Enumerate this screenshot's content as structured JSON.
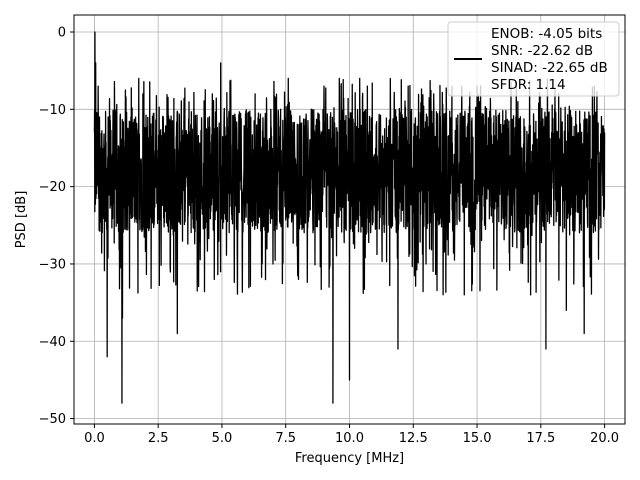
{
  "chart_data": {
    "type": "line",
    "title": "",
    "xlabel": "Frequency [MHz]",
    "ylabel": "PSD [dB]",
    "xlim": [
      -0.8,
      20.8
    ],
    "ylim": [
      -50.7,
      2.2
    ],
    "grid": true,
    "x_ticks": [
      0.0,
      2.5,
      5.0,
      7.5,
      10.0,
      12.5,
      15.0,
      17.5,
      20.0
    ],
    "x_tick_labels": [
      "0.0",
      "2.5",
      "5.0",
      "7.5",
      "10.0",
      "12.5",
      "15.0",
      "17.5",
      "20.0"
    ],
    "y_ticks": [
      0,
      -10,
      -20,
      -30,
      -40,
      -50
    ],
    "y_tick_labels": [
      "0",
      "−10",
      "−20",
      "−30",
      "−40",
      "−50"
    ],
    "legend": {
      "placement": "top-right",
      "lines": [
        "ENOB: -4.05 bits",
        "SNR: -22.62 dB",
        "SINAD: -22.65 dB",
        "SFDR: 1.14"
      ]
    },
    "series": [
      {
        "color": "#000000",
        "x_range": [
          0.0,
          20.0
        ],
        "noise_floor_range": [
          -26,
          -10
        ],
        "x": [
          0.0,
          0.02,
          0.05,
          0.1,
          0.15,
          0.2,
          0.4,
          0.5,
          0.6,
          1.08,
          1.1,
          1.2,
          1.9,
          2.2,
          2.7,
          3.25,
          4.7,
          4.95,
          5.6,
          6.3,
          7.0,
          7.3,
          7.6,
          8.0,
          8.5,
          9.0,
          9.2,
          9.35,
          9.6,
          10.0,
          10.4,
          10.7,
          11.2,
          11.9,
          12.3,
          13.0,
          13.3,
          13.7,
          14.5,
          15.0,
          15.8,
          16.3,
          16.6,
          17.1,
          17.3,
          17.7,
          18.2,
          18.5,
          18.9,
          19.2,
          19.6,
          20.0
        ],
        "y": [
          -13,
          0,
          -4,
          -17,
          -9,
          -11,
          -15,
          -42,
          -20,
          -48,
          -37,
          -14,
          -8,
          -24,
          -11,
          -39,
          -32,
          -4,
          -29,
          -8,
          -30,
          -10,
          -6,
          -32,
          -10,
          -7,
          -33,
          -48,
          -6,
          -45,
          -6,
          -7,
          -24,
          -41,
          -7,
          -30,
          -8,
          -20,
          -34,
          -7,
          -22,
          -16,
          -9,
          -34,
          -18,
          -41,
          -8,
          -36,
          -12,
          -39,
          -7,
          -13
        ]
      }
    ]
  }
}
